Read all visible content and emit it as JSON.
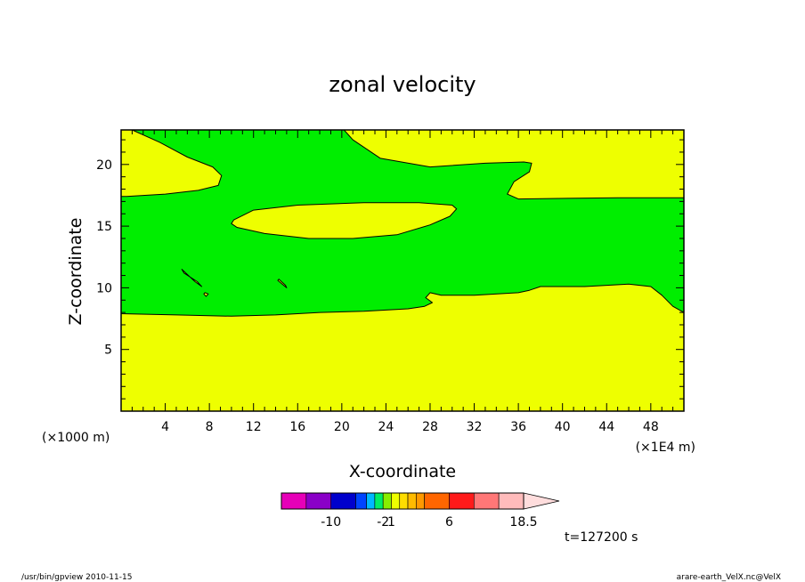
{
  "chart_data": {
    "type": "contour",
    "title": "zonal velocity",
    "xlabel": "X-coordinate",
    "ylabel": "Z-coordinate",
    "x_unit_left": "(×1000 m)",
    "x_unit_right": "(×1E4 m)",
    "xlim": [
      0,
      51
    ],
    "ylim": [
      0,
      22.8
    ],
    "xticks": [
      4,
      8,
      12,
      16,
      20,
      24,
      28,
      32,
      36,
      40,
      44,
      48
    ],
    "xtick_labels": [
      "4",
      "8",
      "12",
      "16",
      "20",
      "24",
      "28",
      "32",
      "36",
      "40",
      "44",
      "48"
    ],
    "yticks": [
      5,
      10,
      15,
      20
    ],
    "ytick_labels": [
      "5",
      "10",
      "15",
      "20"
    ],
    "grid": false,
    "colors": {
      "background_level": "#eeff00",
      "green_level": "#00ee00"
    },
    "regions": [
      {
        "name": "green-band",
        "fill": "#00ee00",
        "outline": [
          [
            1.0,
            22.8
          ],
          [
            3.5,
            21.8
          ],
          [
            6.0,
            20.6
          ],
          [
            8.3,
            19.8
          ],
          [
            9.1,
            19.1
          ],
          [
            8.8,
            18.3
          ],
          [
            7.0,
            17.9
          ],
          [
            4.0,
            17.6
          ],
          [
            0.5,
            17.4
          ],
          [
            0,
            17.4
          ],
          [
            0,
            7.9
          ],
          [
            5,
            7.8
          ],
          [
            10,
            7.7
          ],
          [
            14,
            7.8
          ],
          [
            18,
            8.0
          ],
          [
            22,
            8.1
          ],
          [
            26,
            8.3
          ],
          [
            27.5,
            8.5
          ],
          [
            28.2,
            8.8
          ],
          [
            27.6,
            9.2
          ],
          [
            28,
            9.6
          ],
          [
            29,
            9.4
          ],
          [
            32,
            9.4
          ],
          [
            36,
            9.6
          ],
          [
            37,
            9.8
          ],
          [
            38,
            10.1
          ],
          [
            42,
            10.1
          ],
          [
            46,
            10.3
          ],
          [
            48,
            10.1
          ],
          [
            49,
            9.4
          ],
          [
            50,
            8.5
          ],
          [
            51,
            8.0
          ],
          [
            51,
            17.3
          ],
          [
            45,
            17.3
          ],
          [
            36,
            17.2
          ],
          [
            35.0,
            17.6
          ],
          [
            35.6,
            18.6
          ],
          [
            37,
            19.4
          ],
          [
            37.2,
            20.1
          ],
          [
            36.5,
            20.2
          ],
          [
            33,
            20.1
          ],
          [
            28,
            19.8
          ],
          [
            23.5,
            20.5
          ],
          [
            21.0,
            22.0
          ],
          [
            20.2,
            22.8
          ]
        ]
      },
      {
        "name": "yellow-lens",
        "fill": "#eeff00",
        "outline": [
          [
            10.2,
            15.5
          ],
          [
            12.0,
            16.3
          ],
          [
            16.0,
            16.7
          ],
          [
            22.0,
            16.9
          ],
          [
            27.0,
            16.9
          ],
          [
            30.0,
            16.7
          ],
          [
            30.4,
            16.4
          ],
          [
            29.8,
            15.8
          ],
          [
            28.0,
            15.1
          ],
          [
            25.0,
            14.3
          ],
          [
            21.0,
            14.0
          ],
          [
            17.0,
            14.0
          ],
          [
            13.0,
            14.4
          ],
          [
            10.5,
            14.9
          ],
          [
            10.0,
            15.2
          ]
        ]
      },
      {
        "name": "yellow-island-1",
        "fill": "#eeff00",
        "outline": [
          [
            5.5,
            11.5
          ],
          [
            6.7,
            10.5
          ],
          [
            7.3,
            10.1
          ],
          [
            6.9,
            10.5
          ],
          [
            5.7,
            11.2
          ]
        ]
      },
      {
        "name": "yellow-island-2",
        "fill": "#eeff00",
        "outline": [
          [
            7.6,
            9.6
          ],
          [
            7.9,
            9.5
          ],
          [
            7.7,
            9.3
          ],
          [
            7.5,
            9.5
          ]
        ]
      },
      {
        "name": "yellow-island-3",
        "fill": "#eeff00",
        "outline": [
          [
            14.3,
            10.7
          ],
          [
            14.9,
            10.2
          ],
          [
            15.0,
            10.0
          ],
          [
            14.6,
            10.3
          ],
          [
            14.2,
            10.6
          ]
        ]
      }
    ],
    "colorbar": {
      "colors": [
        "#e600b8",
        "#8a00c8",
        "#0000cc",
        "#0044ff",
        "#00b8ff",
        "#00ee66",
        "#88ee00",
        "#eeff00",
        "#ffdd00",
        "#ffbb00",
        "#ff9900",
        "#ff6600",
        "#ff1a1a",
        "#ff7777",
        "#ffbbbb",
        "#ffdddd"
      ],
      "segment_weights": [
        3,
        3,
        3,
        1.3,
        1,
        1,
        1,
        1,
        1,
        1,
        1,
        3,
        3,
        3,
        3
      ],
      "labels": [
        "-10",
        "-2",
        "1",
        "6",
        "18.5"
      ]
    },
    "time_label": "t=127200 s"
  },
  "footer": {
    "left": "/usr/bin/gpview   2010-11-15",
    "right": "arare-earth_VelX.nc@VelX"
  }
}
